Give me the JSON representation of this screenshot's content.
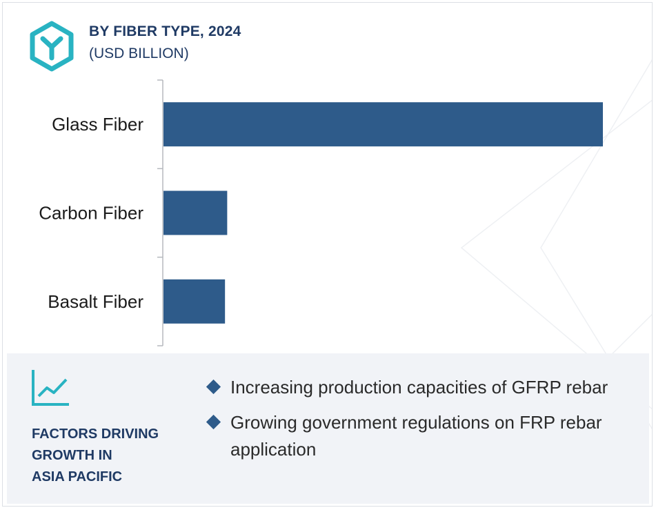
{
  "header": {
    "title": "BY FIBER TYPE, 2024",
    "subtitle": "(USD BILLION)",
    "logo_icon": "hexagon-y-icon"
  },
  "colors": {
    "bar": "#2e5b8a",
    "heading": "#1f3a64",
    "accent": "#29b3c2",
    "panel_bg": "#f1f3f7"
  },
  "chart_data": {
    "type": "bar",
    "orientation": "horizontal",
    "categories": [
      "Glass Fiber",
      "Carbon Fiber",
      "Basalt Fiber"
    ],
    "values": [
      1.0,
      0.145,
      0.14
    ],
    "value_note": "relative bar lengths; no axis values printed",
    "xlim": [
      0,
      1
    ],
    "grid": false,
    "legend": "none"
  },
  "factors": {
    "icon": "trend-chart-icon",
    "heading_lines": [
      "FACTORS DRIVING",
      "GROWTH IN",
      "ASIA PACIFIC"
    ],
    "bullets": [
      "Increasing production capacities of GFRP rebar",
      "Growing government regulations on FRP rebar application"
    ]
  }
}
